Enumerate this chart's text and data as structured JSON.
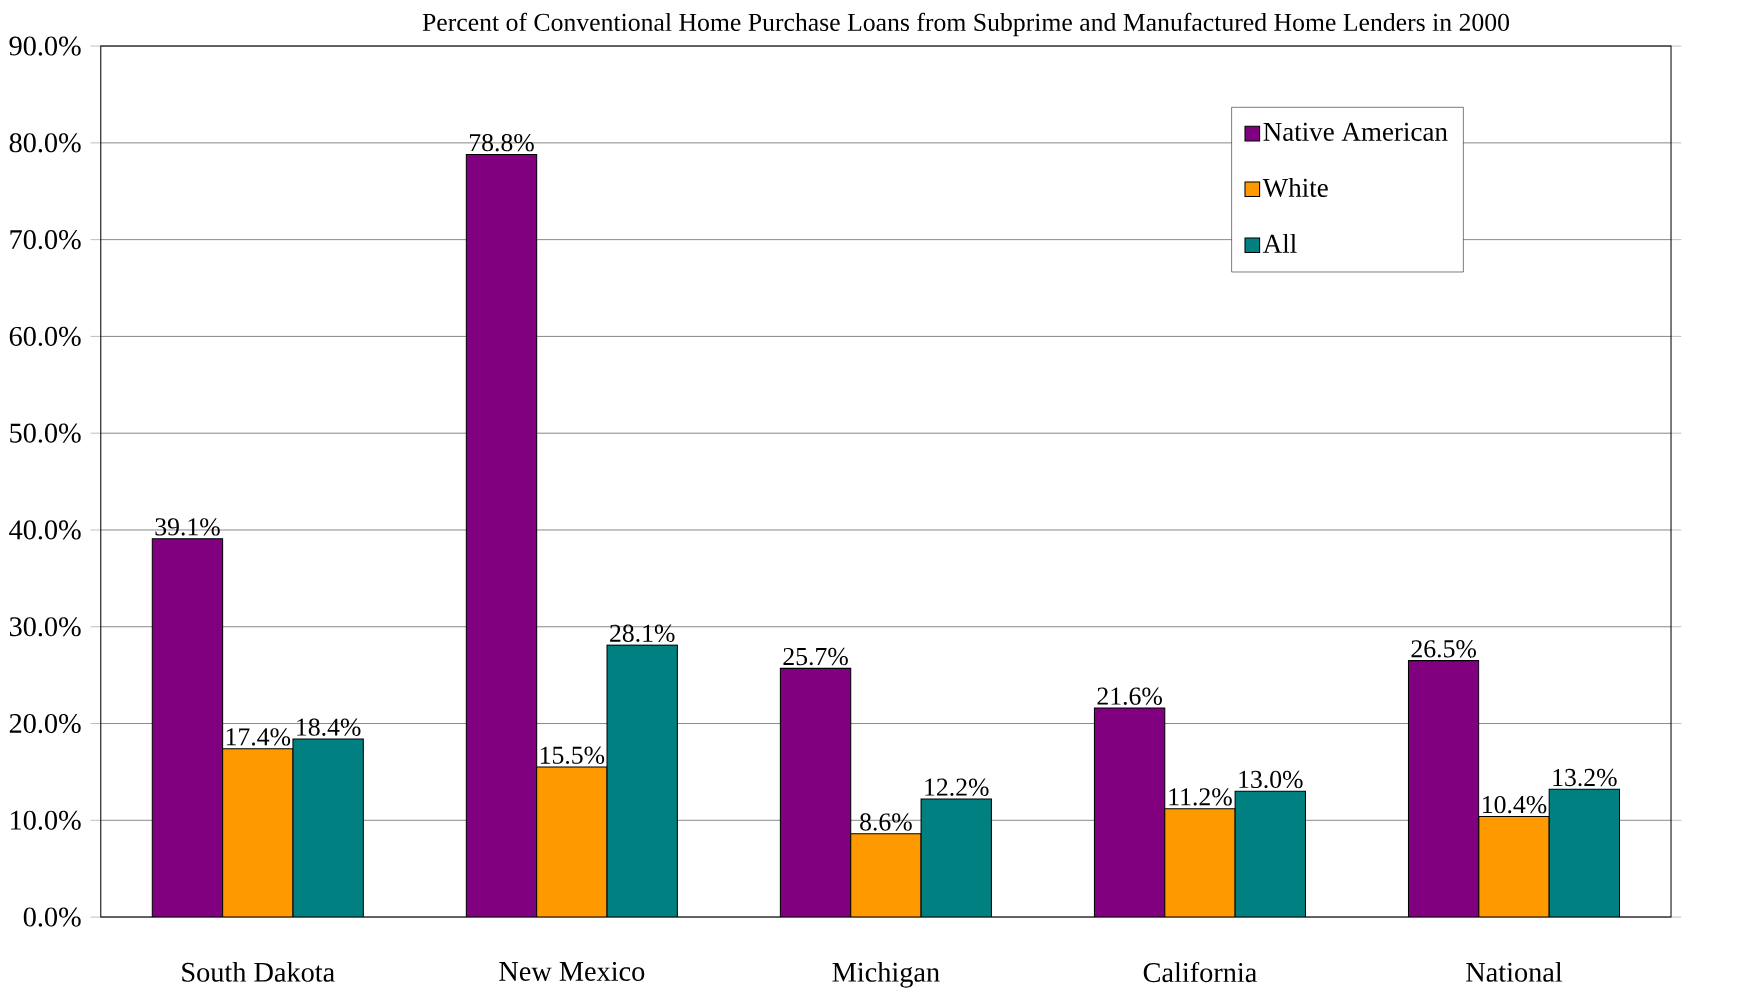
{
  "chart_data": {
    "type": "bar",
    "title": "Percent of Conventional Home Purchase Loans from Subprime and Manufactured Home Lenders in 2000",
    "categories": [
      "South Dakota",
      "New Mexico",
      "Michigan",
      "California",
      "National"
    ],
    "series": [
      {
        "name": "Native American",
        "color": "#800080",
        "values": [
          39.1,
          78.8,
          25.7,
          21.6,
          26.5
        ],
        "value_labels": [
          "39.1%",
          "78.8%",
          "25.7%",
          "21.6%",
          "26.5%"
        ]
      },
      {
        "name": "White",
        "color": "#ff9900",
        "values": [
          17.4,
          15.5,
          8.6,
          11.2,
          10.4
        ],
        "value_labels": [
          "17.4%",
          "15.5%",
          "8.6%",
          "11.2%",
          "10.4%"
        ]
      },
      {
        "name": "All",
        "color": "#008080",
        "values": [
          18.4,
          28.1,
          12.2,
          13.0,
          13.2
        ],
        "value_labels": [
          "18.4%",
          "28.1%",
          "12.2%",
          "13.0%",
          "13.2%"
        ]
      }
    ],
    "ylim": [
      0,
      90
    ],
    "yticks": [
      {
        "value": 0,
        "label": "0.0%"
      },
      {
        "value": 10,
        "label": "10.0%"
      },
      {
        "value": 20,
        "label": "20.0%"
      },
      {
        "value": 30,
        "label": "30.0%"
      },
      {
        "value": 40,
        "label": "40.0%"
      },
      {
        "value": 50,
        "label": "50.0%"
      },
      {
        "value": 60,
        "label": "60.0%"
      },
      {
        "value": 70,
        "label": "70.0%"
      },
      {
        "value": 80,
        "label": "80.0%"
      },
      {
        "value": 90,
        "label": "90.0%"
      }
    ],
    "grid": "y",
    "legend": "top right"
  }
}
